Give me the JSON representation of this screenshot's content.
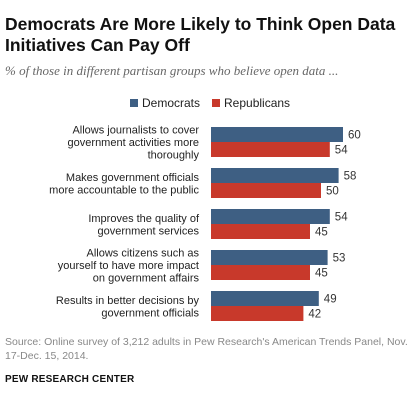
{
  "title": "Democrats Are More Likely to Think Open Data Initiatives Can Pay Off",
  "subtitle": "% of those in different partisan groups who believe open data ...",
  "colors": {
    "democrats": "#3e5f83",
    "republicans": "#c8392b"
  },
  "legend": [
    {
      "label": "Democrats",
      "color": "#3e5f83"
    },
    {
      "label": "Republicans",
      "color": "#c8392b"
    }
  ],
  "chart_data": {
    "type": "bar",
    "orientation": "horizontal",
    "categories": [
      [
        "Allows journalists to cover",
        "government activities more",
        "thoroughly"
      ],
      [
        "Makes government officials",
        "more accountable to the public"
      ],
      [
        "Improves the quality of",
        "government services"
      ],
      [
        "Allows citizens such as",
        "yourself to have more impact",
        "on government affairs"
      ],
      [
        "Results in better decisions by",
        "government officials"
      ]
    ],
    "series": [
      {
        "name": "Democrats",
        "values": [
          60,
          58,
          54,
          53,
          49
        ]
      },
      {
        "name": "Republicans",
        "values": [
          54,
          50,
          45,
          45,
          42
        ]
      }
    ],
    "xlim": [
      0,
      62
    ],
    "data_labels": true,
    "grid": false,
    "legend_position": "top"
  },
  "source": "Source: Online survey of 3,212 adults in Pew Research's American Trends Panel, Nov. 17-Dec. 15, 2014.",
  "brand": "PEW RESEARCH CENTER"
}
